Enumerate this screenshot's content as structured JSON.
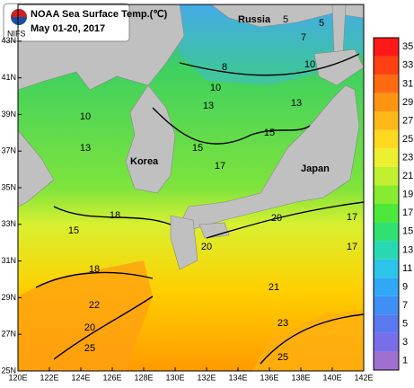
{
  "header": {
    "title": "NOAA Sea Surface Temp.(℃)",
    "subtitle": "May 01-20, 2017",
    "logo": "NIFS"
  },
  "map": {
    "xlim": [
      120,
      142
    ],
    "ylim": [
      25,
      45
    ],
    "lon_ticks": [
      {
        "value": 120,
        "label": "120E"
      },
      {
        "value": 122,
        "label": "122E"
      },
      {
        "value": 124,
        "label": "124E"
      },
      {
        "value": 126,
        "label": "126E"
      },
      {
        "value": 128,
        "label": "128E"
      },
      {
        "value": 130,
        "label": "130E"
      },
      {
        "value": 132,
        "label": "132E"
      },
      {
        "value": 134,
        "label": "134E"
      },
      {
        "value": 136,
        "label": "136E"
      },
      {
        "value": 138,
        "label": "138E"
      },
      {
        "value": 140,
        "label": "140E"
      },
      {
        "value": 142,
        "label": "142E"
      }
    ],
    "lat_ticks": [
      {
        "value": 25,
        "label": "25N"
      },
      {
        "value": 27,
        "label": "27N"
      },
      {
        "value": 29,
        "label": "29N"
      },
      {
        "value": 31,
        "label": "31N"
      },
      {
        "value": 33,
        "label": "33N"
      },
      {
        "value": 35,
        "label": "35N"
      },
      {
        "value": 37,
        "label": "37N"
      },
      {
        "value": 39,
        "label": "39N"
      },
      {
        "value": 41,
        "label": "41N"
      },
      {
        "value": 43,
        "label": "43N"
      }
    ],
    "places": [
      "Russia",
      "Korea",
      "Japan"
    ],
    "contour_labels": [
      5,
      7,
      5,
      8,
      10,
      10,
      13,
      13,
      10,
      13,
      15,
      15,
      17,
      17,
      18,
      15,
      20,
      20,
      17,
      18,
      21,
      22,
      20,
      23,
      25,
      25
    ]
  },
  "colorbar": {
    "ticks": [
      1,
      3,
      5,
      7,
      9,
      11,
      13,
      15,
      17,
      19,
      21,
      23,
      25,
      27,
      29,
      31,
      33,
      35
    ],
    "colors": [
      "#a070d0",
      "#7a6ee8",
      "#5a78f0",
      "#3f8ff5",
      "#30a8f5",
      "#2cc4e8",
      "#28d8b0",
      "#30e070",
      "#4ee83a",
      "#86ec30",
      "#c0f030",
      "#ecf030",
      "#ffd820",
      "#ffb818",
      "#ff9410",
      "#ff6a10",
      "#ff4010",
      "#ff1818"
    ]
  }
}
